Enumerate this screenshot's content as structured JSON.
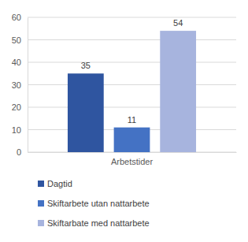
{
  "chart_data": {
    "type": "bar",
    "categories": [
      "Arbetstider"
    ],
    "series": [
      {
        "name": "Dagtid",
        "color": "#2f55a0",
        "values": [
          35
        ]
      },
      {
        "name": "Skiftarbete utan nattarbete",
        "color": "#4472c4",
        "values": [
          11
        ]
      },
      {
        "name": "Skiftarbate med nattarbete",
        "color": "#a7b4de",
        "values": [
          54
        ]
      }
    ],
    "ylim": [
      0,
      60
    ],
    "yticks": [
      0,
      10,
      20,
      30,
      40,
      50,
      60
    ],
    "grid": true,
    "data_labels": true,
    "legend": "bottom"
  }
}
